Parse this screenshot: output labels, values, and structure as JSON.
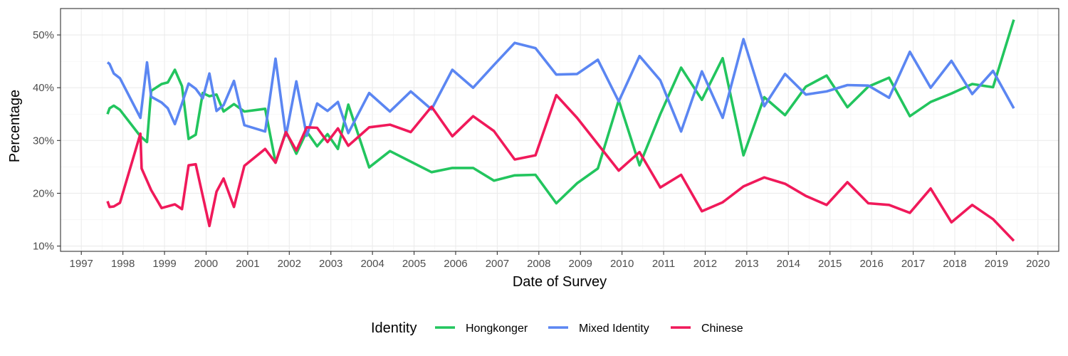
{
  "chart_data": {
    "type": "line",
    "title": "",
    "xlabel": "Date of Survey",
    "ylabel": "Percentage",
    "xlim": [
      1996.5,
      2020.5
    ],
    "ylim": [
      9.0,
      55.0
    ],
    "x_ticks": [
      "1997",
      "1998",
      "1999",
      "2000",
      "2001",
      "2002",
      "2003",
      "2004",
      "2005",
      "2006",
      "2007",
      "2008",
      "2009",
      "2010",
      "2011",
      "2012",
      "2013",
      "2014",
      "2015",
      "2016",
      "2017",
      "2018",
      "2019",
      "2020"
    ],
    "y_ticks": [
      "10%",
      "20%",
      "30%",
      "40%",
      "50%"
    ],
    "grid": true,
    "legend": {
      "title": "Identity",
      "position": "bottom"
    },
    "series": [
      {
        "name": "Hongkonger",
        "color": "#22c55e",
        "points": [
          [
            1997.63,
            35.0
          ],
          [
            1997.68,
            36.1
          ],
          [
            1997.78,
            36.6
          ],
          [
            1997.93,
            35.8
          ],
          [
            1998.42,
            30.8
          ],
          [
            1998.58,
            29.7
          ],
          [
            1998.68,
            39.4
          ],
          [
            1998.93,
            40.7
          ],
          [
            1999.08,
            41.0
          ],
          [
            1999.25,
            43.4
          ],
          [
            1999.42,
            40.3
          ],
          [
            1999.58,
            30.3
          ],
          [
            1999.75,
            31.1
          ],
          [
            1999.92,
            39.0
          ],
          [
            2000.08,
            38.4
          ],
          [
            2000.25,
            38.7
          ],
          [
            2000.42,
            35.5
          ],
          [
            2000.67,
            36.9
          ],
          [
            2000.92,
            35.5
          ],
          [
            2001.42,
            36.0
          ],
          [
            2001.67,
            25.8
          ],
          [
            2001.92,
            31.7
          ],
          [
            2002.17,
            27.5
          ],
          [
            2002.42,
            31.7
          ],
          [
            2002.67,
            28.9
          ],
          [
            2002.92,
            31.2
          ],
          [
            2003.17,
            28.4
          ],
          [
            2003.42,
            36.8
          ],
          [
            2003.92,
            24.9
          ],
          [
            2004.42,
            28.0
          ],
          [
            2004.92,
            26.0
          ],
          [
            2005.42,
            24.0
          ],
          [
            2005.92,
            24.8
          ],
          [
            2006.42,
            24.8
          ],
          [
            2006.92,
            22.4
          ],
          [
            2007.42,
            23.4
          ],
          [
            2007.92,
            23.5
          ],
          [
            2008.42,
            18.1
          ],
          [
            2008.92,
            21.9
          ],
          [
            2009.42,
            24.7
          ],
          [
            2009.92,
            37.6
          ],
          [
            2010.42,
            25.3
          ],
          [
            2010.92,
            35.0
          ],
          [
            2011.42,
            43.8
          ],
          [
            2011.92,
            37.7
          ],
          [
            2012.42,
            45.6
          ],
          [
            2012.92,
            27.2
          ],
          [
            2013.42,
            38.2
          ],
          [
            2013.92,
            34.8
          ],
          [
            2014.42,
            40.2
          ],
          [
            2014.92,
            42.3
          ],
          [
            2015.42,
            36.3
          ],
          [
            2015.92,
            40.2
          ],
          [
            2016.42,
            41.9
          ],
          [
            2016.92,
            34.6
          ],
          [
            2017.42,
            37.3
          ],
          [
            2017.92,
            38.9
          ],
          [
            2018.42,
            40.7
          ],
          [
            2018.92,
            40.1
          ],
          [
            2019.42,
            52.9
          ]
        ]
      },
      {
        "name": "Mixed Identity",
        "color": "#5b86f2",
        "points": [
          [
            1997.63,
            44.8
          ],
          [
            1997.68,
            44.5
          ],
          [
            1997.78,
            42.7
          ],
          [
            1997.93,
            41.8
          ],
          [
            1998.42,
            34.3
          ],
          [
            1998.58,
            44.8
          ],
          [
            1998.68,
            38.3
          ],
          [
            1998.93,
            37.2
          ],
          [
            1999.08,
            36.1
          ],
          [
            1999.25,
            33.1
          ],
          [
            1999.42,
            37.0
          ],
          [
            1999.58,
            40.8
          ],
          [
            1999.75,
            39.8
          ],
          [
            1999.92,
            38.0
          ],
          [
            2000.08,
            42.7
          ],
          [
            2000.25,
            35.6
          ],
          [
            2000.42,
            36.7
          ],
          [
            2000.67,
            41.3
          ],
          [
            2000.92,
            32.9
          ],
          [
            2001.42,
            31.7
          ],
          [
            2001.67,
            45.5
          ],
          [
            2001.92,
            30.9
          ],
          [
            2002.17,
            41.2
          ],
          [
            2002.42,
            30.9
          ],
          [
            2002.67,
            37.0
          ],
          [
            2002.92,
            35.6
          ],
          [
            2003.17,
            37.3
          ],
          [
            2003.42,
            31.4
          ],
          [
            2003.92,
            39.0
          ],
          [
            2004.42,
            35.5
          ],
          [
            2004.92,
            39.3
          ],
          [
            2005.42,
            35.9
          ],
          [
            2005.92,
            43.4
          ],
          [
            2006.42,
            40.0
          ],
          [
            2006.92,
            44.3
          ],
          [
            2007.42,
            48.5
          ],
          [
            2007.92,
            47.5
          ],
          [
            2008.42,
            42.5
          ],
          [
            2008.92,
            42.6
          ],
          [
            2009.42,
            45.3
          ],
          [
            2009.92,
            37.4
          ],
          [
            2010.42,
            46.0
          ],
          [
            2010.92,
            41.4
          ],
          [
            2011.42,
            31.7
          ],
          [
            2011.92,
            43.1
          ],
          [
            2012.42,
            34.3
          ],
          [
            2012.92,
            49.2
          ],
          [
            2013.42,
            36.5
          ],
          [
            2013.92,
            42.6
          ],
          [
            2014.42,
            38.7
          ],
          [
            2014.92,
            39.3
          ],
          [
            2015.42,
            40.5
          ],
          [
            2015.92,
            40.4
          ],
          [
            2016.42,
            38.1
          ],
          [
            2016.92,
            46.8
          ],
          [
            2017.42,
            40.0
          ],
          [
            2017.92,
            45.1
          ],
          [
            2018.42,
            38.8
          ],
          [
            2018.92,
            43.2
          ],
          [
            2019.42,
            36.1
          ]
        ]
      },
      {
        "name": "Chinese",
        "color": "#f0195a",
        "points": [
          [
            1997.63,
            18.5
          ],
          [
            1997.68,
            17.4
          ],
          [
            1997.78,
            17.5
          ],
          [
            1997.93,
            18.2
          ],
          [
            1998.42,
            31.3
          ],
          [
            1998.45,
            24.7
          ],
          [
            1998.68,
            20.6
          ],
          [
            1998.93,
            17.2
          ],
          [
            1999.25,
            17.9
          ],
          [
            1999.42,
            17.0
          ],
          [
            1999.58,
            25.3
          ],
          [
            1999.75,
            25.5
          ],
          [
            2000.08,
            13.8
          ],
          [
            2000.25,
            20.3
          ],
          [
            2000.42,
            22.8
          ],
          [
            2000.67,
            17.4
          ],
          [
            2000.92,
            25.2
          ],
          [
            2001.42,
            28.4
          ],
          [
            2001.67,
            25.8
          ],
          [
            2001.92,
            31.6
          ],
          [
            2002.17,
            28.1
          ],
          [
            2002.42,
            32.5
          ],
          [
            2002.67,
            32.4
          ],
          [
            2002.92,
            29.7
          ],
          [
            2003.17,
            32.3
          ],
          [
            2003.42,
            29.0
          ],
          [
            2003.92,
            32.5
          ],
          [
            2004.42,
            33.0
          ],
          [
            2004.92,
            31.6
          ],
          [
            2005.42,
            36.4
          ],
          [
            2005.92,
            30.8
          ],
          [
            2006.42,
            34.6
          ],
          [
            2006.92,
            31.8
          ],
          [
            2007.42,
            26.4
          ],
          [
            2007.92,
            27.2
          ],
          [
            2008.42,
            38.6
          ],
          [
            2008.92,
            34.3
          ],
          [
            2009.42,
            29.3
          ],
          [
            2009.92,
            24.3
          ],
          [
            2010.42,
            27.8
          ],
          [
            2010.92,
            21.1
          ],
          [
            2011.42,
            23.5
          ],
          [
            2011.92,
            16.6
          ],
          [
            2012.42,
            18.3
          ],
          [
            2012.92,
            21.3
          ],
          [
            2013.42,
            23.0
          ],
          [
            2013.92,
            21.8
          ],
          [
            2014.42,
            19.5
          ],
          [
            2014.92,
            17.8
          ],
          [
            2015.42,
            22.1
          ],
          [
            2015.92,
            18.1
          ],
          [
            2016.42,
            17.8
          ],
          [
            2016.92,
            16.3
          ],
          [
            2017.42,
            20.9
          ],
          [
            2017.92,
            14.5
          ],
          [
            2018.42,
            17.8
          ],
          [
            2018.92,
            15.1
          ],
          [
            2019.42,
            11.0
          ]
        ]
      }
    ]
  }
}
